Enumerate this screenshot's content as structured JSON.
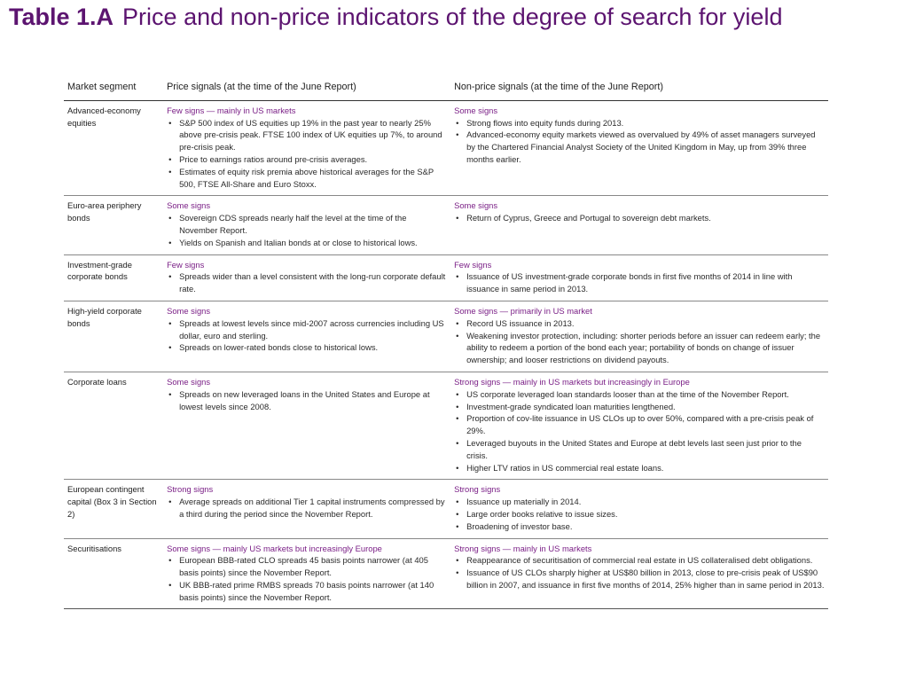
{
  "title": {
    "label": "Table 1.A",
    "text": "Price and non-price indicators of the degree of search for yield"
  },
  "headers": {
    "segment": "Market segment",
    "price": "Price signals (at the time of the June Report)",
    "nonprice": "Non-price signals (at the time of the June Report)"
  },
  "rows": [
    {
      "segment": "Advanced-economy equities",
      "price_signal": "Few signs — mainly in US markets",
      "price_items": [
        "S&P 500 index of US equities up 19% in the past year to nearly 25% above pre-crisis peak. FTSE 100 index of UK equities up 7%, to around pre-crisis peak.",
        "Price to earnings ratios around pre-crisis averages.",
        "Estimates of equity risk premia above historical averages for the S&P 500, FTSE All-Share and Euro Stoxx."
      ],
      "nonprice_signal": "Some signs",
      "nonprice_items": [
        "Strong flows into equity funds during 2013.",
        "Advanced-economy equity markets viewed as overvalued by 49% of asset managers surveyed by the Chartered Financial Analyst Society of the United Kingdom in May, up from 39% three months earlier."
      ]
    },
    {
      "segment": "Euro-area periphery bonds",
      "price_signal": "Some signs",
      "price_items": [
        "Sovereign CDS spreads nearly half the level at the time of the November Report.",
        "Yields on Spanish and Italian bonds at or close to historical lows."
      ],
      "nonprice_signal": "Some signs",
      "nonprice_items": [
        "Return of Cyprus, Greece and Portugal to sovereign debt markets."
      ]
    },
    {
      "segment": "Investment-grade corporate bonds",
      "price_signal": "Few signs",
      "price_items": [
        "Spreads wider than a level consistent with the long-run corporate default rate."
      ],
      "nonprice_signal": "Few signs",
      "nonprice_items": [
        "Issuance of US investment-grade corporate bonds in first five months of 2014 in line with issuance in same period in 2013."
      ]
    },
    {
      "segment": "High-yield corporate bonds",
      "price_signal": "Some signs",
      "price_items": [
        "Spreads at lowest levels since mid-2007 across currencies including US dollar, euro and sterling.",
        "Spreads on lower-rated bonds close to historical lows."
      ],
      "nonprice_signal": "Some signs — primarily in US market",
      "nonprice_items": [
        "Record US issuance in 2013.",
        "Weakening investor protection, including: shorter periods before an issuer can redeem early; the ability to redeem a portion of the bond each year; portability of bonds on change of issuer ownership; and looser restrictions on dividend payouts."
      ]
    },
    {
      "segment": "Corporate loans",
      "price_signal": "Some signs",
      "price_items": [
        "Spreads on new leveraged loans in the United States and Europe at lowest levels since 2008."
      ],
      "nonprice_signal": "Strong signs — mainly in US markets but increasingly in Europe",
      "nonprice_items": [
        "US corporate leveraged loan standards looser than at the time of the November Report.",
        "Investment-grade syndicated loan maturities lengthened.",
        "Proportion of cov-lite issuance in US CLOs up to over 50%, compared with a pre-crisis peak of 29%.",
        "Leveraged buyouts in the United States and Europe at debt levels last seen just prior to the crisis.",
        "Higher LTV ratios in US commercial real estate loans."
      ]
    },
    {
      "segment": "European contingent capital (Box 3 in Section 2)",
      "price_signal": "Strong signs",
      "price_items": [
        "Average spreads on additional Tier 1 capital instruments compressed by a third during the period since the November Report."
      ],
      "nonprice_signal": "Strong signs",
      "nonprice_items": [
        "Issuance up materially in 2014.",
        "Large order books relative to issue sizes.",
        "Broadening of investor base."
      ]
    },
    {
      "segment": "Securitisations",
      "price_signal": "Some signs — mainly US markets but increasingly Europe",
      "price_items": [
        "European BBB-rated CLO spreads 45 basis points narrower (at 405 basis points) since the November Report.",
        "UK BBB-rated prime RMBS spreads 70 basis points narrower (at 140 basis points) since the November Report."
      ],
      "nonprice_signal": "Strong signs — mainly in US markets",
      "nonprice_items": [
        "Reappearance of securitisation of commercial real estate in US collateralised debt obligations.",
        "Issuance of US CLOs sharply higher at US$80 billion in 2013, close to pre-crisis peak of US$90 billion in 2007, and issuance in first five months of 2014, 25% higher than in same period in 2013."
      ]
    }
  ]
}
